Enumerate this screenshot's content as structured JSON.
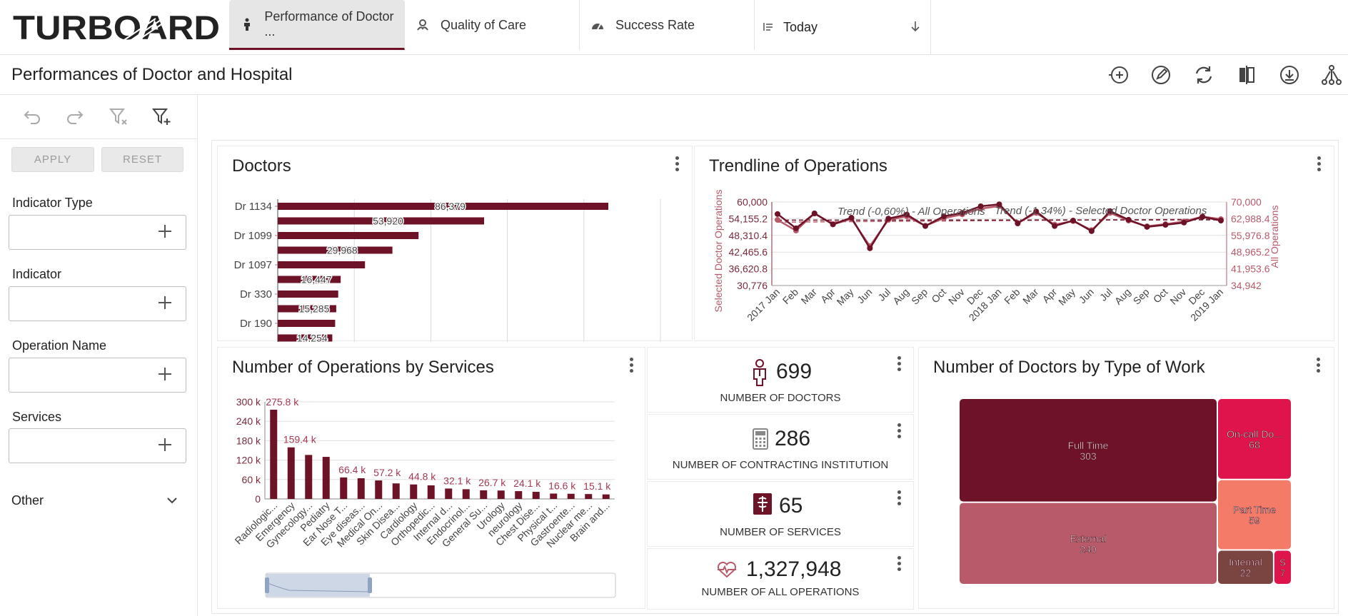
{
  "brand": {
    "logo_text": "TURBOARD"
  },
  "tabs": [
    {
      "label": "Performance of Doctor ...",
      "icon": "person-icon",
      "active": true
    },
    {
      "label": "Quality of Care",
      "icon": "hands-care-icon",
      "active": false
    },
    {
      "label": "Success Rate",
      "icon": "gauge-icon",
      "active": false
    }
  ],
  "date_selector": {
    "label": "Today",
    "icon": "calendar-list-icon",
    "arrow_icon": "arrow-down-icon"
  },
  "page": {
    "title": "Performances of Doctor and Hospital"
  },
  "toolbar": {
    "icons": [
      "add-widget-icon",
      "edit-icon",
      "refresh-icon",
      "compare-icon",
      "download-icon",
      "hierarchy-icon"
    ]
  },
  "sidebar": {
    "undo_icons": [
      "undo-icon",
      "redo-icon",
      "clear-filter-icon",
      "add-filter-icon"
    ],
    "apply_label": "APPLY",
    "reset_label": "RESET",
    "filters": [
      {
        "label": "Indicator Type"
      },
      {
        "label": "Indicator"
      },
      {
        "label": "Operation Name"
      },
      {
        "label": "Services"
      }
    ],
    "other_label": "Other"
  },
  "colors": {
    "primary": "#6d1227",
    "accent": "#b85a6a",
    "pink": "#e0144c",
    "salmon": "#f47b68",
    "brown": "#7a4540"
  },
  "cards": {
    "doctors": {
      "title": "Doctors"
    },
    "trendline": {
      "title": "Trendline of Operations"
    },
    "services": {
      "title": "Number of Operations by Services"
    },
    "work": {
      "title": "Number of Doctors by Type of Work"
    }
  },
  "kpis": [
    {
      "value": "699",
      "label": "NUMBER OF DOCTORS",
      "icon": "doctor-icon"
    },
    {
      "value": "286",
      "label": "NUMBER OF CONTRACTING INSTITUTION",
      "icon": "calculator-icon"
    },
    {
      "value": "65",
      "label": "NUMBER OF SERVICES",
      "icon": "medical-services-icon"
    },
    {
      "value": "1,327,948",
      "label": "NUMBER OF ALL OPERATIONS",
      "icon": "heartbeat-icon"
    }
  ],
  "chart_data": [
    {
      "type": "bar",
      "orientation": "horizontal",
      "title": "Doctors",
      "categories": [
        "Dr 1134",
        "",
        "Dr 1099",
        "",
        "Dr 1097",
        "",
        "Dr 330",
        "",
        "Dr 190",
        ""
      ],
      "series": [
        {
          "values": [
            86379,
            0,
            0,
            0,
            0,
            0,
            0,
            0,
            0,
            0
          ]
        },
        {
          "values": [
            0,
            53920,
            0,
            0,
            0,
            0,
            0,
            0,
            0,
            0
          ]
        }
      ],
      "bars": [
        {
          "y_label": "Dr 1134",
          "value": 86379,
          "data_label": "86,379"
        },
        {
          "y_label": "",
          "value": 53920,
          "data_label": "53,920"
        },
        {
          "y_label": "Dr 1099",
          "value": 36800,
          "data_label": ""
        },
        {
          "y_label": "",
          "value": 29968,
          "data_label": "29,968"
        },
        {
          "y_label": "Dr 1097",
          "value": 22800,
          "data_label": ""
        },
        {
          "y_label": "",
          "value": 16447,
          "data_label": "16,447"
        },
        {
          "y_label": "Dr 330",
          "value": 15800,
          "data_label": ""
        },
        {
          "y_label": "",
          "value": 15285,
          "data_label": "15,285"
        },
        {
          "y_label": "Dr 190",
          "value": 15000,
          "data_label": ""
        },
        {
          "y_label": "",
          "value": 14254,
          "data_label": "14,254"
        }
      ],
      "xlim": [
        0,
        100000
      ]
    },
    {
      "type": "line",
      "title": "Trendline of Operations",
      "x": [
        "2017 Jan",
        "Feb",
        "Mar",
        "Apr",
        "May",
        "Jun",
        "Jul",
        "Aug",
        "Sep",
        "Oct",
        "Nov",
        "Dec",
        "2018 Jan",
        "Feb",
        "Mar",
        "Apr",
        "May",
        "Jun",
        "Jul",
        "Aug",
        "Sep",
        "Oct",
        "Nov",
        "Dec",
        "2019 Jan"
      ],
      "series": [
        {
          "name": "Selected Doctor Operations",
          "axis": "left",
          "values": [
            55800,
            50800,
            56000,
            52200,
            54500,
            43800,
            54200,
            55600,
            51600,
            55000,
            56200,
            58500,
            59200,
            52500,
            56700,
            51600,
            53500,
            49800,
            56800,
            53800,
            51300,
            52000,
            52800,
            54800,
            53500
          ]
        },
        {
          "name": "All Operations",
          "axis": "right",
          "values": [
            62500,
            58000,
            65200,
            60600,
            62900,
            51500,
            62500,
            64000,
            60000,
            63200,
            64800,
            67200,
            68300,
            61200,
            65400,
            60500,
            62000,
            58200,
            65400,
            62200,
            59800,
            60700,
            61800,
            63900,
            62800
          ]
        }
      ],
      "annotations": [
        "Trend (-0,60%) - All Operations",
        "Trend (-1,34%) - Selected Doctor Operations"
      ],
      "y_left": {
        "label": "Selected Doctor Operations",
        "ticks": [
          "60,000",
          "54,155.2",
          "48,310.4",
          "42,465.6",
          "36,620.8",
          "30,776"
        ],
        "ylim": [
          30776,
          60000
        ]
      },
      "y_right": {
        "label": "All Operations",
        "ticks": [
          "70,000",
          "62,988.4",
          "55,976.8",
          "48,965.2",
          "41,953.6",
          "34,942"
        ],
        "ylim": [
          34942,
          70000
        ]
      }
    },
    {
      "type": "bar",
      "title": "Number of Operations by Services",
      "categories": [
        "Radiologic...",
        "Emergency",
        "Gynecology...",
        "Pediatry",
        "Ear Nose T...",
        "Eye diseas...",
        "Medical On...",
        "Skin Disea...",
        "Cardiology",
        "Orthopedic...",
        "Internal d...",
        "Endocrinol...",
        "General Su...",
        "Urology",
        "neurology",
        "Chest Dise...",
        "Physical t...",
        "Gastroente...",
        "Nuclear me...",
        "Brain and..."
      ],
      "values": [
        275800,
        159400,
        136000,
        130000,
        66400,
        64000,
        57200,
        48000,
        44800,
        42000,
        32100,
        30000,
        26700,
        26000,
        24100,
        22000,
        16600,
        16000,
        15100,
        14000
      ],
      "data_labels": [
        "275.8 k",
        "159.4 k",
        "",
        "",
        "66.4 k",
        "",
        "57.2 k",
        "",
        "44.8 k",
        "",
        "32.1 k",
        "",
        "26.7 k",
        "",
        "24.1 k",
        "",
        "16.6 k",
        "",
        "15.1 k",
        ""
      ],
      "y_ticks": [
        "300 k",
        "240 k",
        "180 k",
        "120 k",
        "60 k",
        "0"
      ],
      "ylim": [
        0,
        300000
      ]
    },
    {
      "type": "treemap",
      "title": "Number of Doctors by Type of Work",
      "items": [
        {
          "label": "Full Time",
          "value": 303,
          "color": "#6d1227"
        },
        {
          "label": "External",
          "value": 240,
          "color": "#b85a6a"
        },
        {
          "label": "On-call Do...",
          "value": 68,
          "color": "#e0144c"
        },
        {
          "label": "Part Time",
          "value": 59,
          "color": "#f47b68"
        },
        {
          "label": "Internal",
          "value": 22,
          "color": "#7a4540"
        },
        {
          "label": "S",
          "value": 7,
          "color": "#e0144c"
        }
      ]
    }
  ]
}
